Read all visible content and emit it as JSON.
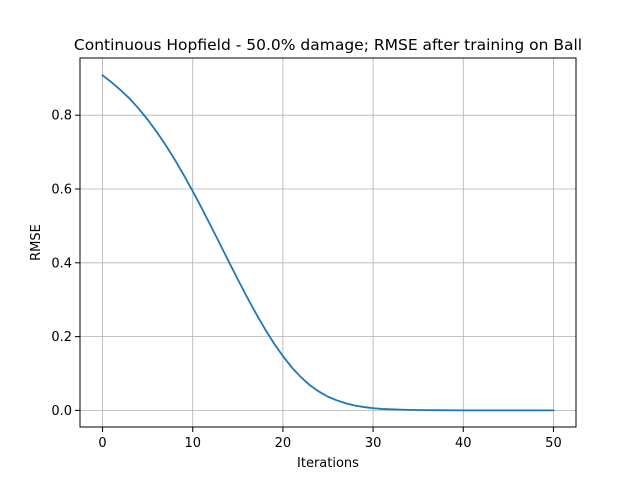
{
  "chart_data": {
    "type": "line",
    "title": "Continuous Hopfield - 50.0% damage; RMSE after training on Ball",
    "xlabel": "Iterations",
    "ylabel": "RMSE",
    "xlim": [
      -2.5,
      52.5
    ],
    "ylim": [
      -0.045,
      0.955
    ],
    "grid": true,
    "x_ticks": [
      0,
      10,
      20,
      30,
      40,
      50
    ],
    "x_tick_labels": [
      "0",
      "10",
      "20",
      "30",
      "40",
      "50"
    ],
    "y_ticks": [
      0.0,
      0.2,
      0.4,
      0.6,
      0.8
    ],
    "y_tick_labels": [
      "0.0",
      "0.2",
      "0.4",
      "0.6",
      "0.8"
    ],
    "series": [
      {
        "color": "#1f77b4",
        "x": [
          0,
          1,
          2,
          3,
          4,
          5,
          6,
          7,
          8,
          9,
          10,
          11,
          12,
          13,
          14,
          15,
          16,
          17,
          18,
          19,
          20,
          21,
          22,
          23,
          24,
          25,
          26,
          27,
          28,
          29,
          30,
          31,
          32,
          33,
          34,
          35,
          36,
          37,
          38,
          39,
          40,
          41,
          42,
          43,
          44,
          45,
          46,
          47,
          48,
          49,
          50
        ],
        "y": [
          0.908,
          0.889,
          0.868,
          0.845,
          0.818,
          0.788,
          0.755,
          0.719,
          0.68,
          0.638,
          0.594,
          0.548,
          0.5,
          0.452,
          0.403,
          0.355,
          0.308,
          0.263,
          0.221,
          0.182,
          0.147,
          0.116,
          0.09,
          0.068,
          0.051,
          0.037,
          0.027,
          0.019,
          0.013,
          0.009,
          0.006,
          0.004,
          0.003,
          0.002,
          0.0014,
          0.001,
          0.0007,
          0.0005,
          0.0003,
          0.0002,
          0.00015,
          0.0001,
          7e-05,
          5e-05,
          3e-05,
          2e-05,
          1e-05,
          1e-05,
          0.0,
          0.0,
          0.0
        ]
      }
    ]
  }
}
